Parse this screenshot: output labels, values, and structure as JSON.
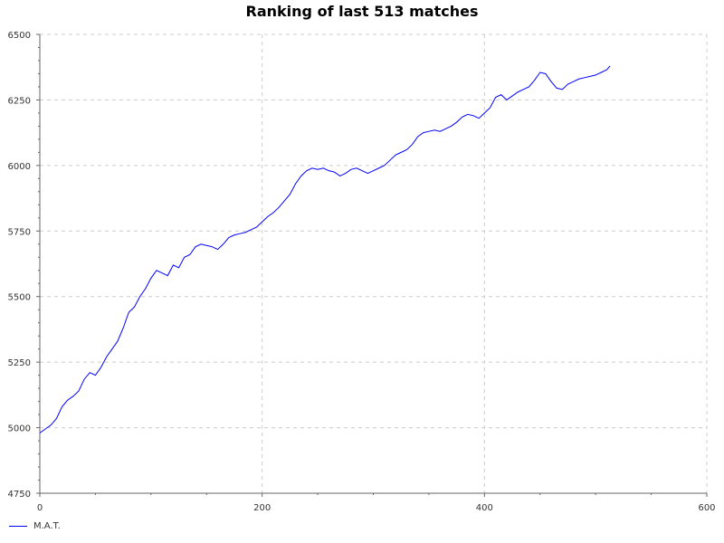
{
  "chart_data": {
    "type": "line",
    "title": "Ranking of last 513 matches",
    "xlabel": "",
    "ylabel": "",
    "xlim": [
      0,
      600
    ],
    "ylim": [
      4750,
      6500
    ],
    "x_ticks": [
      0,
      200,
      400,
      600
    ],
    "y_ticks": [
      4750,
      5000,
      5250,
      5500,
      5750,
      6000,
      6250,
      6500
    ],
    "grid": true,
    "legend_position": "bottom-left",
    "series": [
      {
        "name": "M.A.T.",
        "color": "#0000ff",
        "x": [
          0,
          5,
          10,
          15,
          20,
          25,
          30,
          35,
          40,
          45,
          50,
          55,
          60,
          65,
          70,
          75,
          80,
          85,
          90,
          95,
          100,
          105,
          110,
          115,
          120,
          125,
          130,
          135,
          140,
          145,
          150,
          155,
          160,
          165,
          170,
          175,
          180,
          185,
          190,
          195,
          200,
          205,
          210,
          215,
          220,
          225,
          230,
          235,
          240,
          245,
          250,
          255,
          260,
          265,
          270,
          275,
          280,
          285,
          290,
          295,
          300,
          305,
          310,
          315,
          320,
          325,
          330,
          335,
          340,
          345,
          350,
          355,
          360,
          365,
          370,
          375,
          380,
          385,
          390,
          395,
          400,
          405,
          410,
          415,
          420,
          425,
          430,
          435,
          440,
          445,
          450,
          455,
          460,
          465,
          470,
          475,
          480,
          485,
          490,
          495,
          500,
          505,
          510,
          513
        ],
        "y": [
          4980,
          4995,
          5010,
          5035,
          5080,
          5105,
          5120,
          5140,
          5185,
          5210,
          5200,
          5230,
          5270,
          5300,
          5330,
          5380,
          5440,
          5460,
          5500,
          5530,
          5570,
          5600,
          5590,
          5580,
          5620,
          5610,
          5650,
          5660,
          5690,
          5700,
          5695,
          5690,
          5680,
          5700,
          5725,
          5735,
          5740,
          5745,
          5755,
          5765,
          5785,
          5805,
          5820,
          5840,
          5865,
          5890,
          5930,
          5960,
          5980,
          5990,
          5985,
          5990,
          5980,
          5975,
          5960,
          5970,
          5985,
          5990,
          5980,
          5970,
          5980,
          5990,
          6000,
          6020,
          6040,
          6050,
          6060,
          6080,
          6110,
          6125,
          6130,
          6135,
          6130,
          6140,
          6150,
          6165,
          6185,
          6195,
          6190,
          6180,
          6200,
          6220,
          6260,
          6270,
          6250,
          6265,
          6280,
          6290,
          6300,
          6325,
          6355,
          6350,
          6320,
          6295,
          6290,
          6310,
          6320,
          6330,
          6335,
          6340,
          6345,
          6355,
          6365,
          6380
        ]
      }
    ]
  }
}
